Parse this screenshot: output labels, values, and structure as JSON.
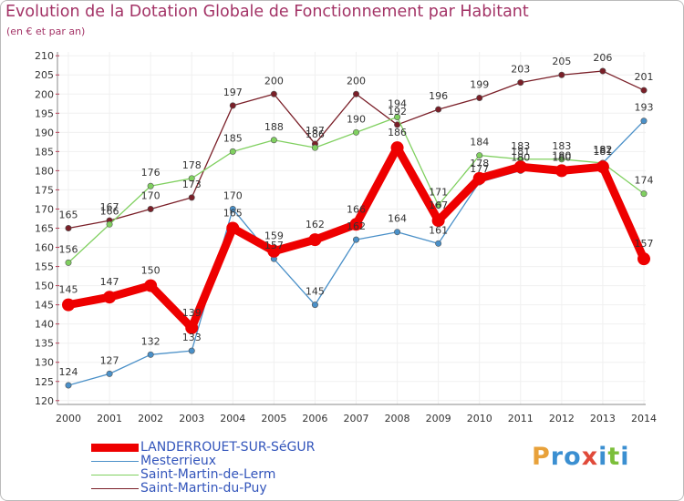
{
  "title": "Evolution de la Dotation Globale de Fonctionnement par Habitant",
  "subtitle": "(en € et par an)",
  "logo": {
    "text": "Proxiti",
    "letters": [
      {
        "ch": "P",
        "color": "#e8a13a"
      },
      {
        "ch": "r",
        "color": "#3b8fd1"
      },
      {
        "ch": "o",
        "color": "#3b8fd1"
      },
      {
        "ch": "x",
        "color": "#e04a3a"
      },
      {
        "ch": "i",
        "color": "#3b8fd1"
      },
      {
        "ch": "t",
        "color": "#7cbf3a"
      },
      {
        "ch": "i",
        "color": "#3b8fd1"
      }
    ]
  },
  "colors": {
    "background_grid": "#f0f0f0",
    "axis": "#888888",
    "tick_text": "#333333",
    "label_text": "#333333"
  },
  "chart_data": {
    "type": "line",
    "title": "Evolution de la Dotation Globale de Fonctionnement par Habitant",
    "subtitle": "(en € et par an)",
    "xlabel": "",
    "ylabel": "",
    "x": [
      "2000",
      "2001",
      "2002",
      "2003",
      "2004",
      "2005",
      "2006",
      "2007",
      "2008",
      "2009",
      "2010",
      "2011",
      "2012",
      "2013",
      "2014"
    ],
    "yticks": [
      120,
      125,
      130,
      135,
      140,
      145,
      150,
      155,
      160,
      165,
      170,
      175,
      180,
      185,
      190,
      195,
      200,
      205,
      210
    ],
    "ylim": [
      119,
      211
    ],
    "grid": true,
    "legend_position": "bottom-left",
    "series": [
      {
        "name": "LANDERROUET-SUR-SéGUR",
        "color": "#ee0000",
        "values": [
          145,
          147,
          150,
          139,
          165,
          159,
          162,
          166,
          186,
          167,
          178,
          181,
          180,
          181,
          157
        ],
        "labels": [
          "145",
          "147",
          "150",
          "139",
          "165",
          "159",
          "162",
          "166",
          "186",
          "167",
          "178",
          "181",
          "180",
          "181",
          "157"
        ]
      },
      {
        "name": "Mesterrieux",
        "color": "#4a90c8",
        "values": [
          124,
          127,
          132,
          133,
          170,
          157,
          145,
          162,
          164,
          161,
          177,
          180,
          180,
          182,
          193
        ],
        "labels": [
          "124",
          "127",
          "132",
          "133",
          "170",
          "157",
          "145",
          "162",
          "164",
          "161",
          "177",
          "180",
          "180",
          "182",
          "193"
        ]
      },
      {
        "name": "Saint-Martin-de-Lerm",
        "color": "#80d060",
        "values": [
          156,
          166,
          176,
          178,
          185,
          188,
          186,
          190,
          194,
          171,
          184,
          183,
          183,
          182,
          174
        ],
        "labels": [
          "156",
          "166",
          "176",
          "178",
          "185",
          "188",
          "186",
          "190",
          "194",
          "171",
          "184",
          "183",
          "183",
          "182",
          "174"
        ]
      },
      {
        "name": "Saint-Martin-du-Puy",
        "color": "#7a1f28",
        "values": [
          165,
          167,
          170,
          173,
          197,
          200,
          187,
          200,
          192,
          196,
          199,
          203,
          205,
          206,
          201
        ],
        "labels": [
          "165",
          "167",
          "170",
          "173",
          "197",
          "200",
          "187",
          "200",
          "192",
          "196",
          "199",
          "203",
          "205",
          "206",
          "201"
        ]
      }
    ]
  }
}
